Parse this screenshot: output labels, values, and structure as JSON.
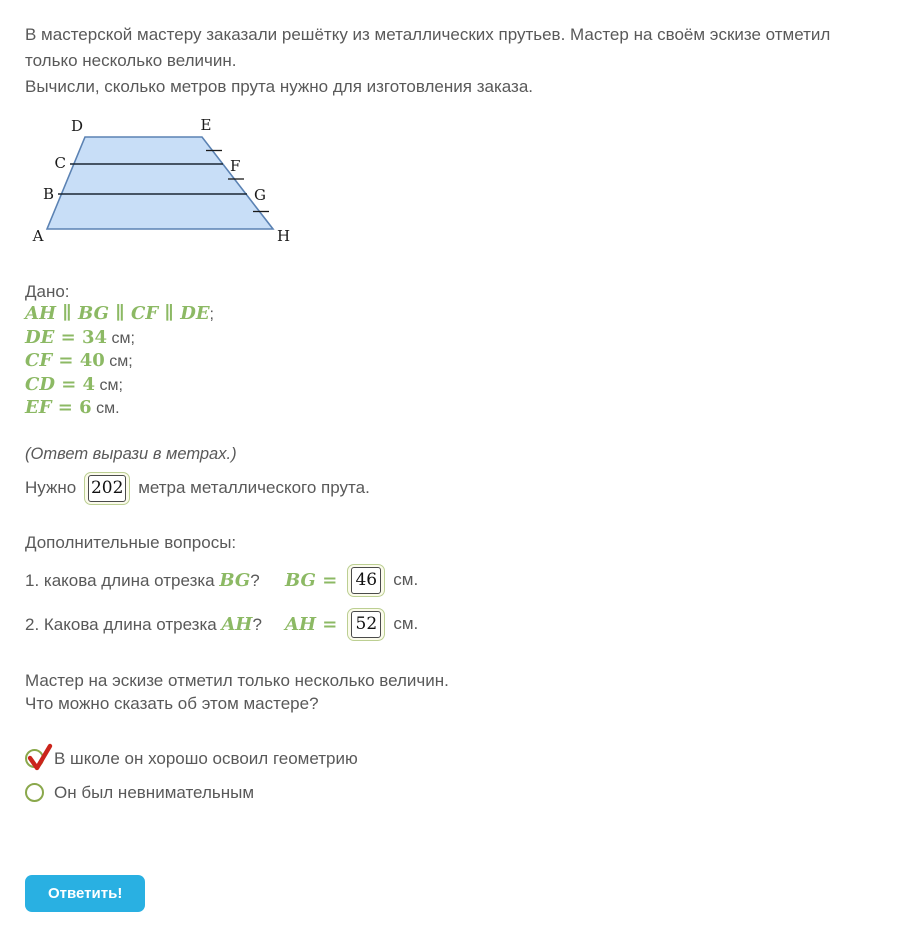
{
  "problem": {
    "statement_line1": "В мастерской мастеру заказали решётку из металлических прутьев. Мастер на своём эскизе отметил только несколько величин.",
    "statement_line2": "Вычисли, сколько метров прута нужно для изготовления заказа."
  },
  "figure": {
    "labels": {
      "a": "A",
      "b": "B",
      "c": "C",
      "d": "D",
      "e": "E",
      "f": "F",
      "g": "G",
      "h": "H"
    }
  },
  "given": {
    "header": "Дано:",
    "lines": [
      {
        "math": "AH ∥ BG ∥ CF ∥ DE",
        "text": ";"
      },
      {
        "math": "DE = 34",
        "text": " см;"
      },
      {
        "math": "CF = 40",
        "text": " см;"
      },
      {
        "math": "CD = 4",
        "text": " см;"
      },
      {
        "math": "EF = 6",
        "text": " см."
      }
    ]
  },
  "answer": {
    "hint": "(Ответ вырази в метрах.)",
    "prefix": "Нужно",
    "value": "202",
    "suffix": "метра металлического прута."
  },
  "extra_questions": {
    "header": "Дополнительные вопросы:",
    "items": [
      {
        "question_prefix": "1. какова длина отрезка ",
        "question_math": "BG",
        "question_suffix": "?",
        "equation": "BG =",
        "value": "46",
        "unit": "см."
      },
      {
        "question_prefix": "2. Какова длина отрезка ",
        "question_math": "AH",
        "question_suffix": "?",
        "equation": "AH =",
        "value": "52",
        "unit": "см."
      }
    ]
  },
  "poll": {
    "line1": "Мастер на эскизе отметил только несколько величин.",
    "line2": "Что можно сказать об этом мастере?",
    "options": [
      {
        "label": "В школе он хорошо освоил геометрию",
        "selected": true
      },
      {
        "label": "Он был невнимательным",
        "selected": false
      }
    ]
  },
  "submit": {
    "label": "Ответить!"
  },
  "colors": {
    "math_green": "#8cb964",
    "accent_blue": "#29b0e2",
    "figure_fill": "#c8def7",
    "figure_stroke": "#5b82b3",
    "inner_line": "#1b2733",
    "input_border_green": "#bccf92",
    "input_bg_cream": "#fbfbec",
    "radio_green": "#8aa84c",
    "check_red": "#cb241b",
    "text_gray": "#595959"
  }
}
